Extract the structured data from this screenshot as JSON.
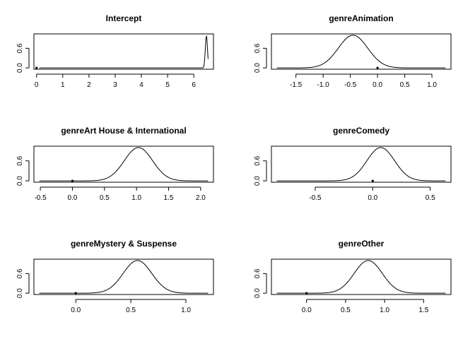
{
  "chart_data": [
    {
      "type": "line",
      "title": "Intercept",
      "xlabel": "",
      "ylabel": "",
      "xlim": [
        -0.1,
        6.75
      ],
      "ylim": [
        -0.04,
        1.04
      ],
      "x_ticks": [
        "0",
        "1",
        "2",
        "3",
        "4",
        "5",
        "6"
      ],
      "y_ticks": [
        "0.0",
        "0.6"
      ],
      "density": {
        "mean": 6.48,
        "sd": 0.04
      },
      "prior_point": {
        "x": 0,
        "y": 0
      }
    },
    {
      "type": "line",
      "title": "genreAnimation",
      "xlabel": "",
      "ylabel": "",
      "xlim": [
        -1.95,
        1.35
      ],
      "ylim": [
        -0.04,
        1.04
      ],
      "x_ticks": [
        "-1.5",
        "-1.0",
        "-0.5",
        "0.0",
        "0.5",
        "1.0"
      ],
      "y_ticks": [
        "0.0",
        "0.6"
      ],
      "density": {
        "mean": -0.45,
        "sd": 0.27
      },
      "prior_point": {
        "x": 0,
        "y": 0
      }
    },
    {
      "type": "line",
      "title": "genreArt House & International",
      "xlabel": "",
      "ylabel": "",
      "xlim": [
        -0.6,
        2.2
      ],
      "ylim": [
        -0.04,
        1.04
      ],
      "x_ticks": [
        "-0.5",
        "0.0",
        "0.5",
        "1.0",
        "1.5",
        "2.0"
      ],
      "y_ticks": [
        "0.0",
        "0.6"
      ],
      "density": {
        "mean": 1.03,
        "sd": 0.22
      },
      "prior_point": {
        "x": 0,
        "y": 0
      }
    },
    {
      "type": "line",
      "title": "genreComedy",
      "xlabel": "",
      "ylabel": "",
      "xlim": [
        -0.88,
        0.68
      ],
      "ylim": [
        -0.04,
        1.04
      ],
      "x_ticks": [
        "-0.5",
        "0.0",
        "0.5"
      ],
      "y_ticks": [
        "0.0",
        "0.6"
      ],
      "density": {
        "mean": 0.07,
        "sd": 0.12
      },
      "prior_point": {
        "x": 0,
        "y": 0
      }
    },
    {
      "type": "line",
      "title": "genreMystery & Suspense",
      "xlabel": "",
      "ylabel": "",
      "xlim": [
        -0.38,
        1.25
      ],
      "ylim": [
        -0.04,
        1.04
      ],
      "x_ticks": [
        "0.0",
        "0.5",
        "1.0"
      ],
      "y_ticks": [
        "0.0",
        "0.6"
      ],
      "density": {
        "mean": 0.56,
        "sd": 0.13
      },
      "prior_point": {
        "x": 0,
        "y": 0
      }
    },
    {
      "type": "line",
      "title": "genreOther",
      "xlabel": "",
      "ylabel": "",
      "xlim": [
        -0.45,
        1.85
      ],
      "ylim": [
        -0.04,
        1.04
      ],
      "x_ticks": [
        "0.0",
        "0.5",
        "1.0",
        "1.5"
      ],
      "y_ticks": [
        "0.0",
        "0.6"
      ],
      "density": {
        "mean": 0.79,
        "sd": 0.18
      },
      "prior_point": {
        "x": 0,
        "y": 0
      }
    }
  ]
}
